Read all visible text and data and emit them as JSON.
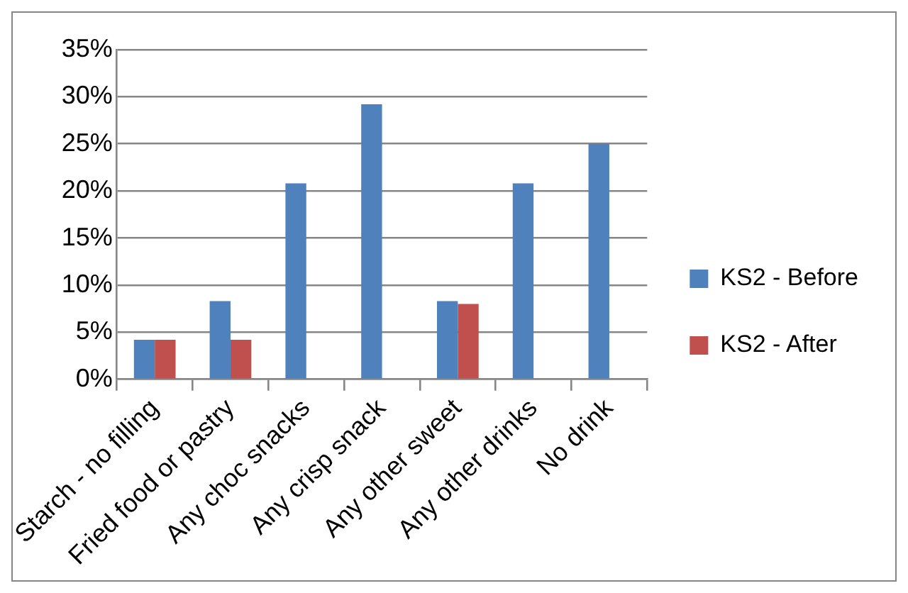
{
  "chart_data": {
    "type": "bar",
    "categories": [
      "Starch - no filling",
      "Fried food or pastry",
      "Any choc snacks",
      "Any crisp snack",
      "Any other sweet",
      "Any other drinks",
      "No drink"
    ],
    "series": [
      {
        "name": "KS2 - Before",
        "color": "#4f81bd",
        "values": [
          4.2,
          8.3,
          20.8,
          29.2,
          8.3,
          20.8,
          25
        ]
      },
      {
        "name": "KS2 - After",
        "color": "#c0504d",
        "values": [
          4.2,
          4.2,
          0,
          0,
          8,
          0,
          0
        ]
      }
    ],
    "ylim": [
      0,
      35
    ],
    "yticks": [
      {
        "value": 0,
        "label": "0%"
      },
      {
        "value": 5,
        "label": "5%"
      },
      {
        "value": 10,
        "label": "10%"
      },
      {
        "value": 15,
        "label": "15%"
      },
      {
        "value": 20,
        "label": "20%"
      },
      {
        "value": 25,
        "label": "25%"
      },
      {
        "value": 30,
        "label": "30%"
      },
      {
        "value": 35,
        "label": "35%"
      }
    ],
    "grid": "y",
    "legend": "right"
  }
}
